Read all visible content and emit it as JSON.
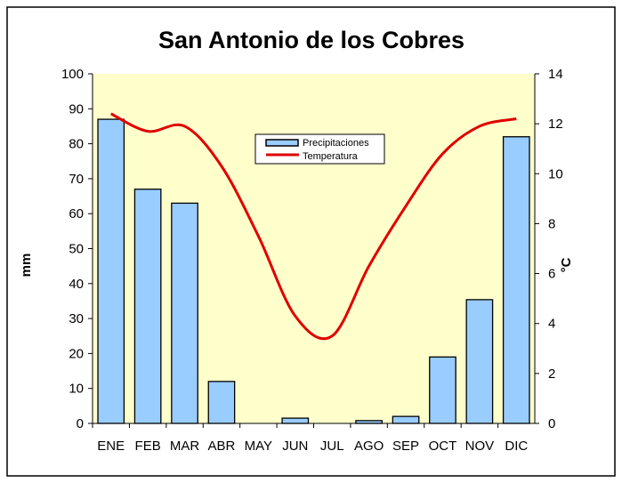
{
  "chart_data": {
    "type": "bar+line",
    "title": "San Antonio de los Cobres",
    "categories": [
      "ENE",
      "FEB",
      "MAR",
      "ABR",
      "MAY",
      "JUN",
      "JUL",
      "AGO",
      "SEP",
      "OCT",
      "NOV",
      "DIC"
    ],
    "series": [
      {
        "name": "Precipitaciones",
        "type": "bar",
        "axis": "left",
        "color": "#99ccff",
        "values": [
          87,
          67,
          63,
          12,
          0,
          1.5,
          0,
          0.8,
          2,
          19,
          35.4,
          82
        ]
      },
      {
        "name": "Temperatura",
        "type": "line",
        "axis": "right",
        "color": "#e00000",
        "values": [
          12.4,
          11.7,
          11.9,
          10.3,
          7.5,
          4.3,
          3.5,
          6.3,
          8.7,
          10.8,
          11.9,
          12.2
        ]
      }
    ],
    "ylabel": "mm",
    "ylim": [
      0,
      100
    ],
    "yticks": [
      0,
      10,
      20,
      30,
      40,
      50,
      60,
      70,
      80,
      90,
      100
    ],
    "y2label": "°C",
    "y2lim": [
      0,
      14
    ],
    "y2ticks": [
      0,
      2,
      4,
      6,
      8,
      10,
      12,
      14
    ],
    "legend": "top-center",
    "plot_background": "#ffffcc",
    "grid": false
  }
}
